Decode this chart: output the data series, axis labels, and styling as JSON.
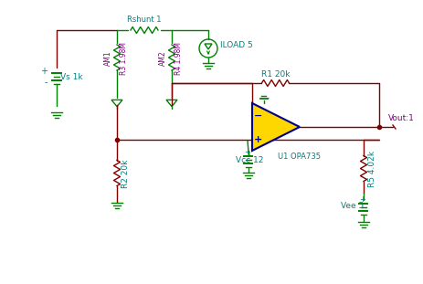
{
  "bg_color": "#ffffff",
  "wire_color": "#800000",
  "green_color": "#008000",
  "teal_color": "#008080",
  "purple_color": "#800080",
  "op_amp_fill": "#FFD700",
  "op_amp_edge": "#00008B",
  "labels": {
    "Vs": "Vs 1k",
    "Rshunt": "Rshunt 1",
    "ILOAD": "ILOAD 5",
    "AM1": "AM1",
    "R3": "R3 1.98M",
    "AM2": "AM2",
    "R4": "R4 1.98M",
    "R1": "R1 20k",
    "R2": "R2 20k",
    "R5": "R5 4.02k",
    "U1": "U1 OPA735",
    "Vcc": "Vcc 12",
    "Vee": "Vee 5",
    "Vout": "Vout:1"
  }
}
